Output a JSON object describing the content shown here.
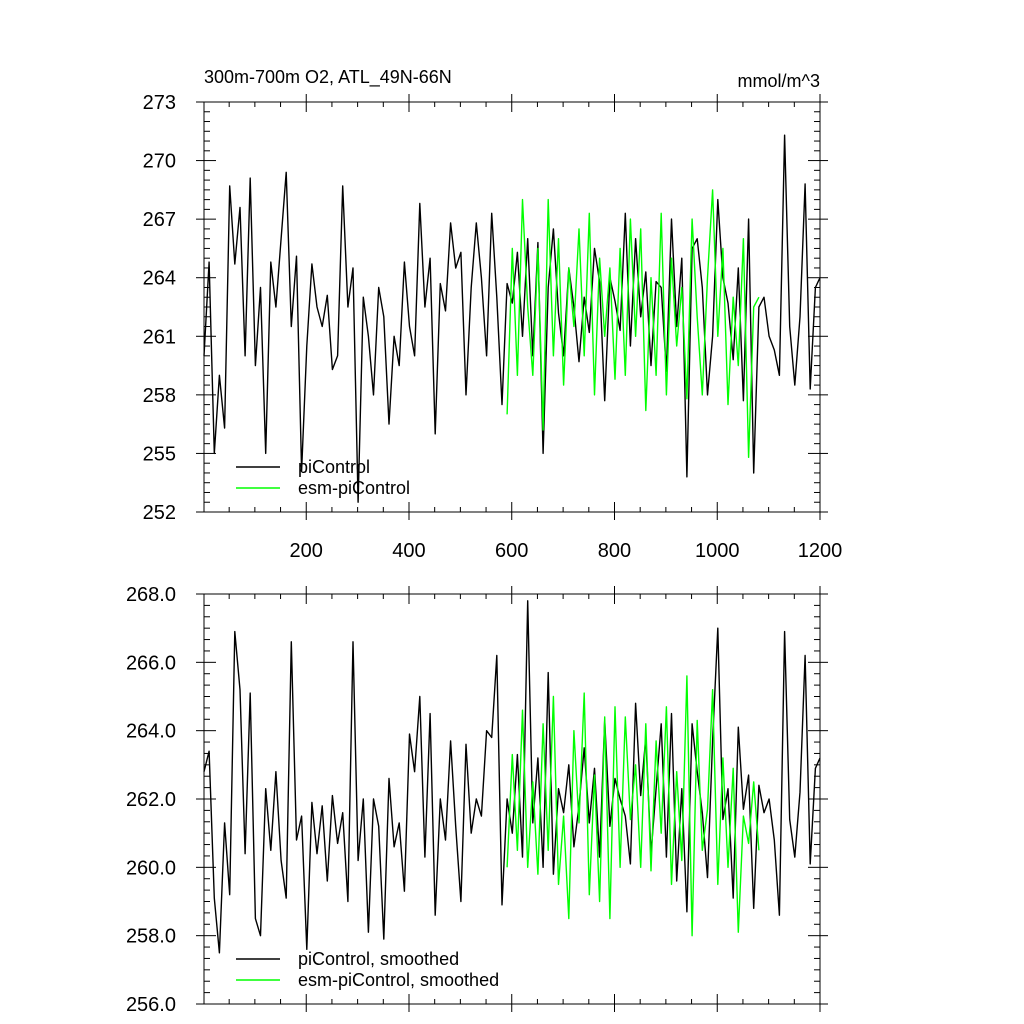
{
  "chart_data": [
    {
      "type": "line",
      "title": "300m-700m O2, ATL_49N-66N",
      "units": "mmol/m^3",
      "xlim": [
        1,
        1200
      ],
      "ylim": [
        252,
        273
      ],
      "xticks": [
        200,
        400,
        600,
        800,
        1000,
        1200
      ],
      "xtick_labels": [
        "200",
        "400",
        "600",
        "800",
        "1000",
        "1200"
      ],
      "yticks": [
        252,
        255,
        258,
        261,
        264,
        267,
        270,
        273
      ],
      "ytick_labels": [
        "252",
        "255",
        "258",
        "261",
        "264",
        "267",
        "270",
        "273"
      ],
      "grid": false,
      "legend_position": "bottom-left",
      "series": [
        {
          "name": "piControl",
          "color": "#000000",
          "x": [
            1,
            11,
            21,
            31,
            41,
            51,
            61,
            71,
            81,
            91,
            101,
            111,
            121,
            131,
            141,
            151,
            161,
            171,
            181,
            191,
            201,
            211,
            221,
            231,
            241,
            251,
            261,
            271,
            281,
            291,
            301,
            311,
            321,
            331,
            341,
            351,
            361,
            371,
            381,
            391,
            401,
            411,
            421,
            431,
            441,
            451,
            461,
            471,
            481,
            491,
            501,
            511,
            521,
            531,
            541,
            551,
            561,
            571,
            581,
            591,
            601,
            611,
            621,
            631,
            641,
            651,
            661,
            671,
            681,
            691,
            701,
            711,
            721,
            731,
            741,
            751,
            761,
            771,
            781,
            791,
            801,
            811,
            821,
            831,
            841,
            851,
            861,
            871,
            881,
            891,
            901,
            911,
            921,
            931,
            941,
            951,
            961,
            971,
            981,
            991,
            1001,
            1011,
            1021,
            1031,
            1041,
            1051,
            1061,
            1071,
            1081,
            1091,
            1101,
            1111,
            1121,
            1131,
            1141,
            1151,
            1161,
            1171,
            1181,
            1191,
            1200
          ],
          "values": [
            260.0,
            264.8,
            255.0,
            259.0,
            256.3,
            268.7,
            264.7,
            267.6,
            260.0,
            269.1,
            259.5,
            263.5,
            255.0,
            264.8,
            262.5,
            266.0,
            269.4,
            261.5,
            265.1,
            254.1,
            260.5,
            264.7,
            262.5,
            261.5,
            263.1,
            259.3,
            260.0,
            268.7,
            262.5,
            264.5,
            252.5,
            263.0,
            261.0,
            258.0,
            263.5,
            262.0,
            256.5,
            261.0,
            259.5,
            264.8,
            261.5,
            260.0,
            267.8,
            262.5,
            265.0,
            256.0,
            263.7,
            262.3,
            266.8,
            264.5,
            265.3,
            258.0,
            263.5,
            266.8,
            264.0,
            260.0,
            267.3,
            263.0,
            257.5,
            263.7,
            262.7,
            265.3,
            261.0,
            266.0,
            260.0,
            265.8,
            255.0,
            263.5,
            266.5,
            262.2,
            260.0,
            264.5,
            262.5,
            259.7,
            263.0,
            261.2,
            265.5,
            263.8,
            257.7,
            264.0,
            262.8,
            261.3,
            267.3,
            260.5,
            266.0,
            262.0,
            264.3,
            259.5,
            263.8,
            263.5,
            259.2,
            267.0,
            261.5,
            265.0,
            253.8,
            265.5,
            266.0,
            263.5,
            258.0,
            261.0,
            268.0,
            264.0,
            262.7,
            259.8,
            264.5,
            257.7,
            267.0,
            254.0,
            262.5,
            263.0,
            261.0,
            260.3,
            259.0,
            271.3,
            261.5,
            258.5,
            262.0,
            268.8,
            258.3,
            263.5,
            264.0
          ]
        },
        {
          "name": "esm-piControl",
          "color": "#00ff00",
          "x": [
            591,
            601,
            611,
            621,
            631,
            641,
            651,
            661,
            671,
            681,
            691,
            701,
            711,
            721,
            731,
            741,
            751,
            761,
            771,
            781,
            791,
            801,
            811,
            821,
            831,
            841,
            851,
            861,
            871,
            881,
            891,
            901,
            911,
            921,
            931,
            941,
            951,
            961,
            971,
            981,
            991,
            1001,
            1011,
            1021,
            1031,
            1041,
            1051,
            1061,
            1071,
            1081
          ],
          "values": [
            257.0,
            265.5,
            259.0,
            268.0,
            262.5,
            259.0,
            265.5,
            256.2,
            268.0,
            260.0,
            266.0,
            258.5,
            264.5,
            261.5,
            266.5,
            260.0,
            267.3,
            258.0,
            265.0,
            261.0,
            264.5,
            258.8,
            265.5,
            259.0,
            267.0,
            261.0,
            266.5,
            257.2,
            264.0,
            259.0,
            267.3,
            258.0,
            265.0,
            260.5,
            263.5,
            257.8,
            267.0,
            262.0,
            258.0,
            264.0,
            268.5,
            261.0,
            265.5,
            257.5,
            263.0,
            259.5,
            266.0,
            254.8,
            262.5,
            263.0
          ]
        }
      ]
    },
    {
      "type": "line",
      "title": "",
      "xlim": [
        1,
        1200
      ],
      "ylim": [
        256.0,
        268.0
      ],
      "yticks": [
        256.0,
        258.0,
        260.0,
        262.0,
        264.0,
        266.0,
        268.0
      ],
      "ytick_labels": [
        "256.0",
        "258.0",
        "260.0",
        "262.0",
        "264.0",
        "266.0",
        "268.0"
      ],
      "grid": false,
      "legend_position": "bottom-left",
      "series": [
        {
          "name": "piControl, smoothed",
          "color": "#000000",
          "x": [
            1,
            11,
            21,
            31,
            41,
            51,
            61,
            71,
            81,
            91,
            101,
            111,
            121,
            131,
            141,
            151,
            161,
            171,
            181,
            191,
            201,
            211,
            221,
            231,
            241,
            251,
            261,
            271,
            281,
            291,
            301,
            311,
            321,
            331,
            341,
            351,
            361,
            371,
            381,
            391,
            401,
            411,
            421,
            431,
            441,
            451,
            461,
            471,
            481,
            491,
            501,
            511,
            521,
            531,
            541,
            551,
            561,
            571,
            581,
            591,
            601,
            611,
            621,
            631,
            641,
            651,
            661,
            671,
            681,
            691,
            701,
            711,
            721,
            731,
            741,
            751,
            761,
            771,
            781,
            791,
            801,
            811,
            821,
            831,
            841,
            851,
            861,
            871,
            881,
            891,
            901,
            911,
            921,
            931,
            941,
            951,
            961,
            971,
            981,
            991,
            1001,
            1011,
            1021,
            1031,
            1041,
            1051,
            1061,
            1071,
            1081,
            1091,
            1101,
            1111,
            1121,
            1131,
            1141,
            1151,
            1161,
            1171,
            1181,
            1191,
            1200
          ],
          "values": [
            262.8,
            263.4,
            259.1,
            257.5,
            261.3,
            259.2,
            266.9,
            265.2,
            260.4,
            265.1,
            258.5,
            258.0,
            262.3,
            260.5,
            262.8,
            260.2,
            259.1,
            266.6,
            260.8,
            261.5,
            257.6,
            261.9,
            260.4,
            261.8,
            259.6,
            262.1,
            260.7,
            261.6,
            259.0,
            266.6,
            260.2,
            262.0,
            258.1,
            262.0,
            261.2,
            257.9,
            262.6,
            260.6,
            261.3,
            259.3,
            263.9,
            262.8,
            265.0,
            260.3,
            264.5,
            258.6,
            262.0,
            260.8,
            263.7,
            261.2,
            259.0,
            263.6,
            261.0,
            262.0,
            261.5,
            264.0,
            263.8,
            266.2,
            258.9,
            262.0,
            261.0,
            263.3,
            260.3,
            267.8,
            261.3,
            263.2,
            260.0,
            265.7,
            259.8,
            262.3,
            261.6,
            263.0,
            260.6,
            261.8,
            263.5,
            261.3,
            262.9,
            260.3,
            264.3,
            261.2,
            262.6,
            262.0,
            261.5,
            260.1,
            264.8,
            262.1,
            263.8,
            260.4,
            262.3,
            264.2,
            260.3,
            264.5,
            259.6,
            262.3,
            258.7,
            264.2,
            262.8,
            261.6,
            259.7,
            263.7,
            267.0,
            261.4,
            262.3,
            259.1,
            264.1,
            261.7,
            262.7,
            258.8,
            262.4,
            261.6,
            262.0,
            260.8,
            258.6,
            266.9,
            261.4,
            260.3,
            262.2,
            266.2,
            260.1,
            262.9,
            263.2
          ]
        },
        {
          "name": "esm-piControl, smoothed",
          "color": "#00ff00",
          "x": [
            591,
            601,
            611,
            621,
            631,
            641,
            651,
            661,
            671,
            681,
            691,
            701,
            711,
            721,
            731,
            741,
            751,
            761,
            771,
            781,
            791,
            801,
            811,
            821,
            831,
            841,
            851,
            861,
            871,
            881,
            891,
            901,
            911,
            921,
            931,
            941,
            951,
            961,
            971,
            981,
            991,
            1001,
            1011,
            1021,
            1031,
            1041,
            1051,
            1061,
            1071,
            1081
          ],
          "values": [
            260.0,
            263.3,
            260.5,
            264.6,
            260.0,
            262.5,
            259.8,
            264.2,
            260.5,
            265.0,
            259.5,
            261.5,
            258.5,
            264.0,
            261.3,
            265.1,
            259.2,
            262.7,
            259.0,
            264.4,
            258.5,
            264.7,
            260.0,
            264.4,
            261.4,
            263.0,
            260.0,
            264.2,
            259.9,
            263.7,
            261.0,
            264.7,
            259.5,
            262.8,
            260.2,
            265.6,
            258.0,
            264.3,
            260.5,
            261.7,
            265.2,
            259.5,
            263.2,
            260.0,
            262.9,
            258.1,
            261.5,
            260.7,
            262.5,
            260.5
          ]
        }
      ]
    }
  ]
}
